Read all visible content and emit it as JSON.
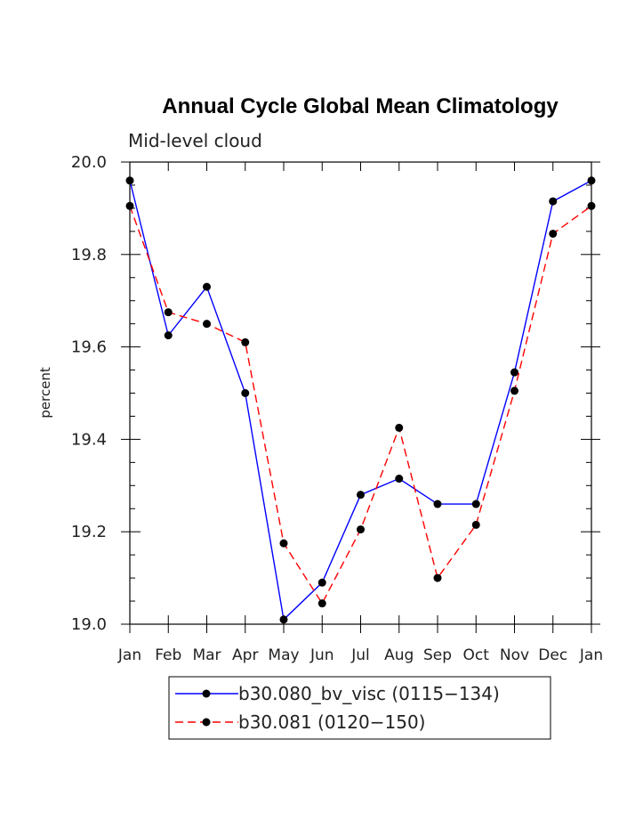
{
  "chart_data": {
    "type": "line",
    "title": "Annual Cycle Global Mean Climatology",
    "subtitle": "Mid-level cloud",
    "xlabel": "",
    "ylabel": "percent",
    "categories": [
      "Jan",
      "Feb",
      "Mar",
      "Apr",
      "May",
      "Jun",
      "Jul",
      "Aug",
      "Sep",
      "Oct",
      "Nov",
      "Dec",
      "Jan"
    ],
    "ylim": [
      19.0,
      20.0
    ],
    "y_ticks": [
      "19.0",
      "19.2",
      "19.4",
      "19.6",
      "19.8",
      "20.0"
    ],
    "y_tick_values": [
      19.0,
      19.2,
      19.4,
      19.6,
      19.8,
      20.0
    ],
    "grid": false,
    "legend_position": "bottom-center",
    "series": [
      {
        "name": "b30.080_bv_visc (0115−134)",
        "color": "#0000ff",
        "dash": "solid",
        "values": [
          19.96,
          19.625,
          19.73,
          19.5,
          19.01,
          19.09,
          19.28,
          19.315,
          19.26,
          19.26,
          19.545,
          19.915,
          19.96
        ]
      },
      {
        "name": "b30.081 (0120−150)",
        "color": "#ff0000",
        "dash": "dashed",
        "values": [
          19.905,
          19.675,
          19.65,
          19.61,
          19.175,
          19.045,
          19.205,
          19.425,
          19.1,
          19.215,
          19.505,
          19.845,
          19.905
        ]
      }
    ]
  }
}
